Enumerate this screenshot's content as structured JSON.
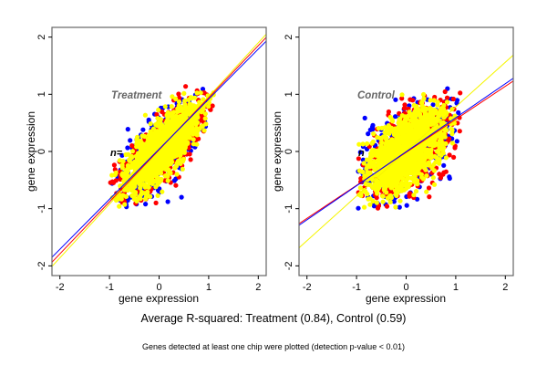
{
  "chart_data": [
    {
      "type": "scatter",
      "panel": "left",
      "annotation": "Treatment",
      "n_annotation": "n=",
      "xlabel": "gene expression",
      "ylabel": "gene expression",
      "xlim": [
        -2.16,
        2.16
      ],
      "ylim": [
        -2.17,
        2.17
      ],
      "xticks": [
        "-2",
        "-1",
        "0",
        "1",
        "2"
      ],
      "yticks": [
        "-2",
        "-1",
        "0",
        "1",
        "2"
      ],
      "grid": false,
      "series": [
        {
          "name": "blue",
          "color": "#0000ff",
          "cloud": {
            "center": [
              0.05,
              0.05
            ],
            "spread_major": 0.55,
            "spread_minor": 0.22,
            "angle_deg": 45,
            "extent": [
              [
                -1.0,
                1.1
              ],
              [
                -1.0,
                1.1
              ]
            ]
          },
          "fit": {
            "slope": 0.875,
            "intercept": 0.04
          }
        },
        {
          "name": "red",
          "color": "#ff0000",
          "cloud": {
            "center": [
              0.05,
              0.05
            ],
            "spread_major": 0.55,
            "spread_minor": 0.21,
            "angle_deg": 45,
            "extent": [
              [
                -1.0,
                1.15
              ],
              [
                -1.0,
                1.15
              ]
            ]
          },
          "fit": {
            "slope": 0.91,
            "intercept": 0.03
          }
        },
        {
          "name": "yellow",
          "color": "#ffff00",
          "cloud": {
            "center": [
              0.05,
              0.05
            ],
            "spread_major": 0.5,
            "spread_minor": 0.18,
            "angle_deg": 45,
            "extent": [
              [
                -1.0,
                1.1
              ],
              [
                -1.0,
                1.1
              ]
            ]
          },
          "fit": {
            "slope": 0.94,
            "intercept": 0.02
          }
        }
      ],
      "r_squared": 0.84
    },
    {
      "type": "scatter",
      "panel": "right",
      "annotation": "Control",
      "n_annotation": "n",
      "xlabel": "gene expression",
      "ylabel": "gene expression",
      "xlim": [
        -2.16,
        2.16
      ],
      "ylim": [
        -2.17,
        2.17
      ],
      "xticks": [
        "-2",
        "-1",
        "0",
        "1",
        "2"
      ],
      "yticks": [
        "-2",
        "-1",
        "0",
        "1",
        "2"
      ],
      "grid": false,
      "series": [
        {
          "name": "blue",
          "color": "#0000ff",
          "cloud": {
            "center": [
              0.0,
              0.0
            ],
            "spread_major": 0.55,
            "spread_minor": 0.3,
            "angle_deg": 42,
            "extent": [
              [
                -1.0,
                1.1
              ],
              [
                -1.0,
                1.1
              ]
            ]
          },
          "fit": {
            "slope": 0.595,
            "intercept": -0.005
          }
        },
        {
          "name": "red",
          "color": "#ff0000",
          "cloud": {
            "center": [
              0.1,
              0.0
            ],
            "spread_major": 0.55,
            "spread_minor": 0.3,
            "angle_deg": 40,
            "extent": [
              [
                -1.0,
                1.1
              ],
              [
                -1.0,
                1.1
              ]
            ]
          },
          "fit": {
            "slope": 0.577,
            "intercept": -0.015
          }
        },
        {
          "name": "yellow",
          "color": "#ffff00",
          "cloud": {
            "center": [
              0.0,
              0.0
            ],
            "spread_major": 0.5,
            "spread_minor": 0.24,
            "angle_deg": 42,
            "extent": [
              [
                -1.0,
                1.0
              ],
              [
                -1.0,
                1.0
              ]
            ]
          },
          "fit": {
            "slope": 0.78,
            "intercept": 0.0
          }
        }
      ],
      "r_squared": 0.59
    }
  ],
  "caption": {
    "main": "Average R-squared: Treatment (0.84), Control (0.59)",
    "sub": "Genes detected at least one chip were plotted (detection p-value < 0.01)"
  }
}
